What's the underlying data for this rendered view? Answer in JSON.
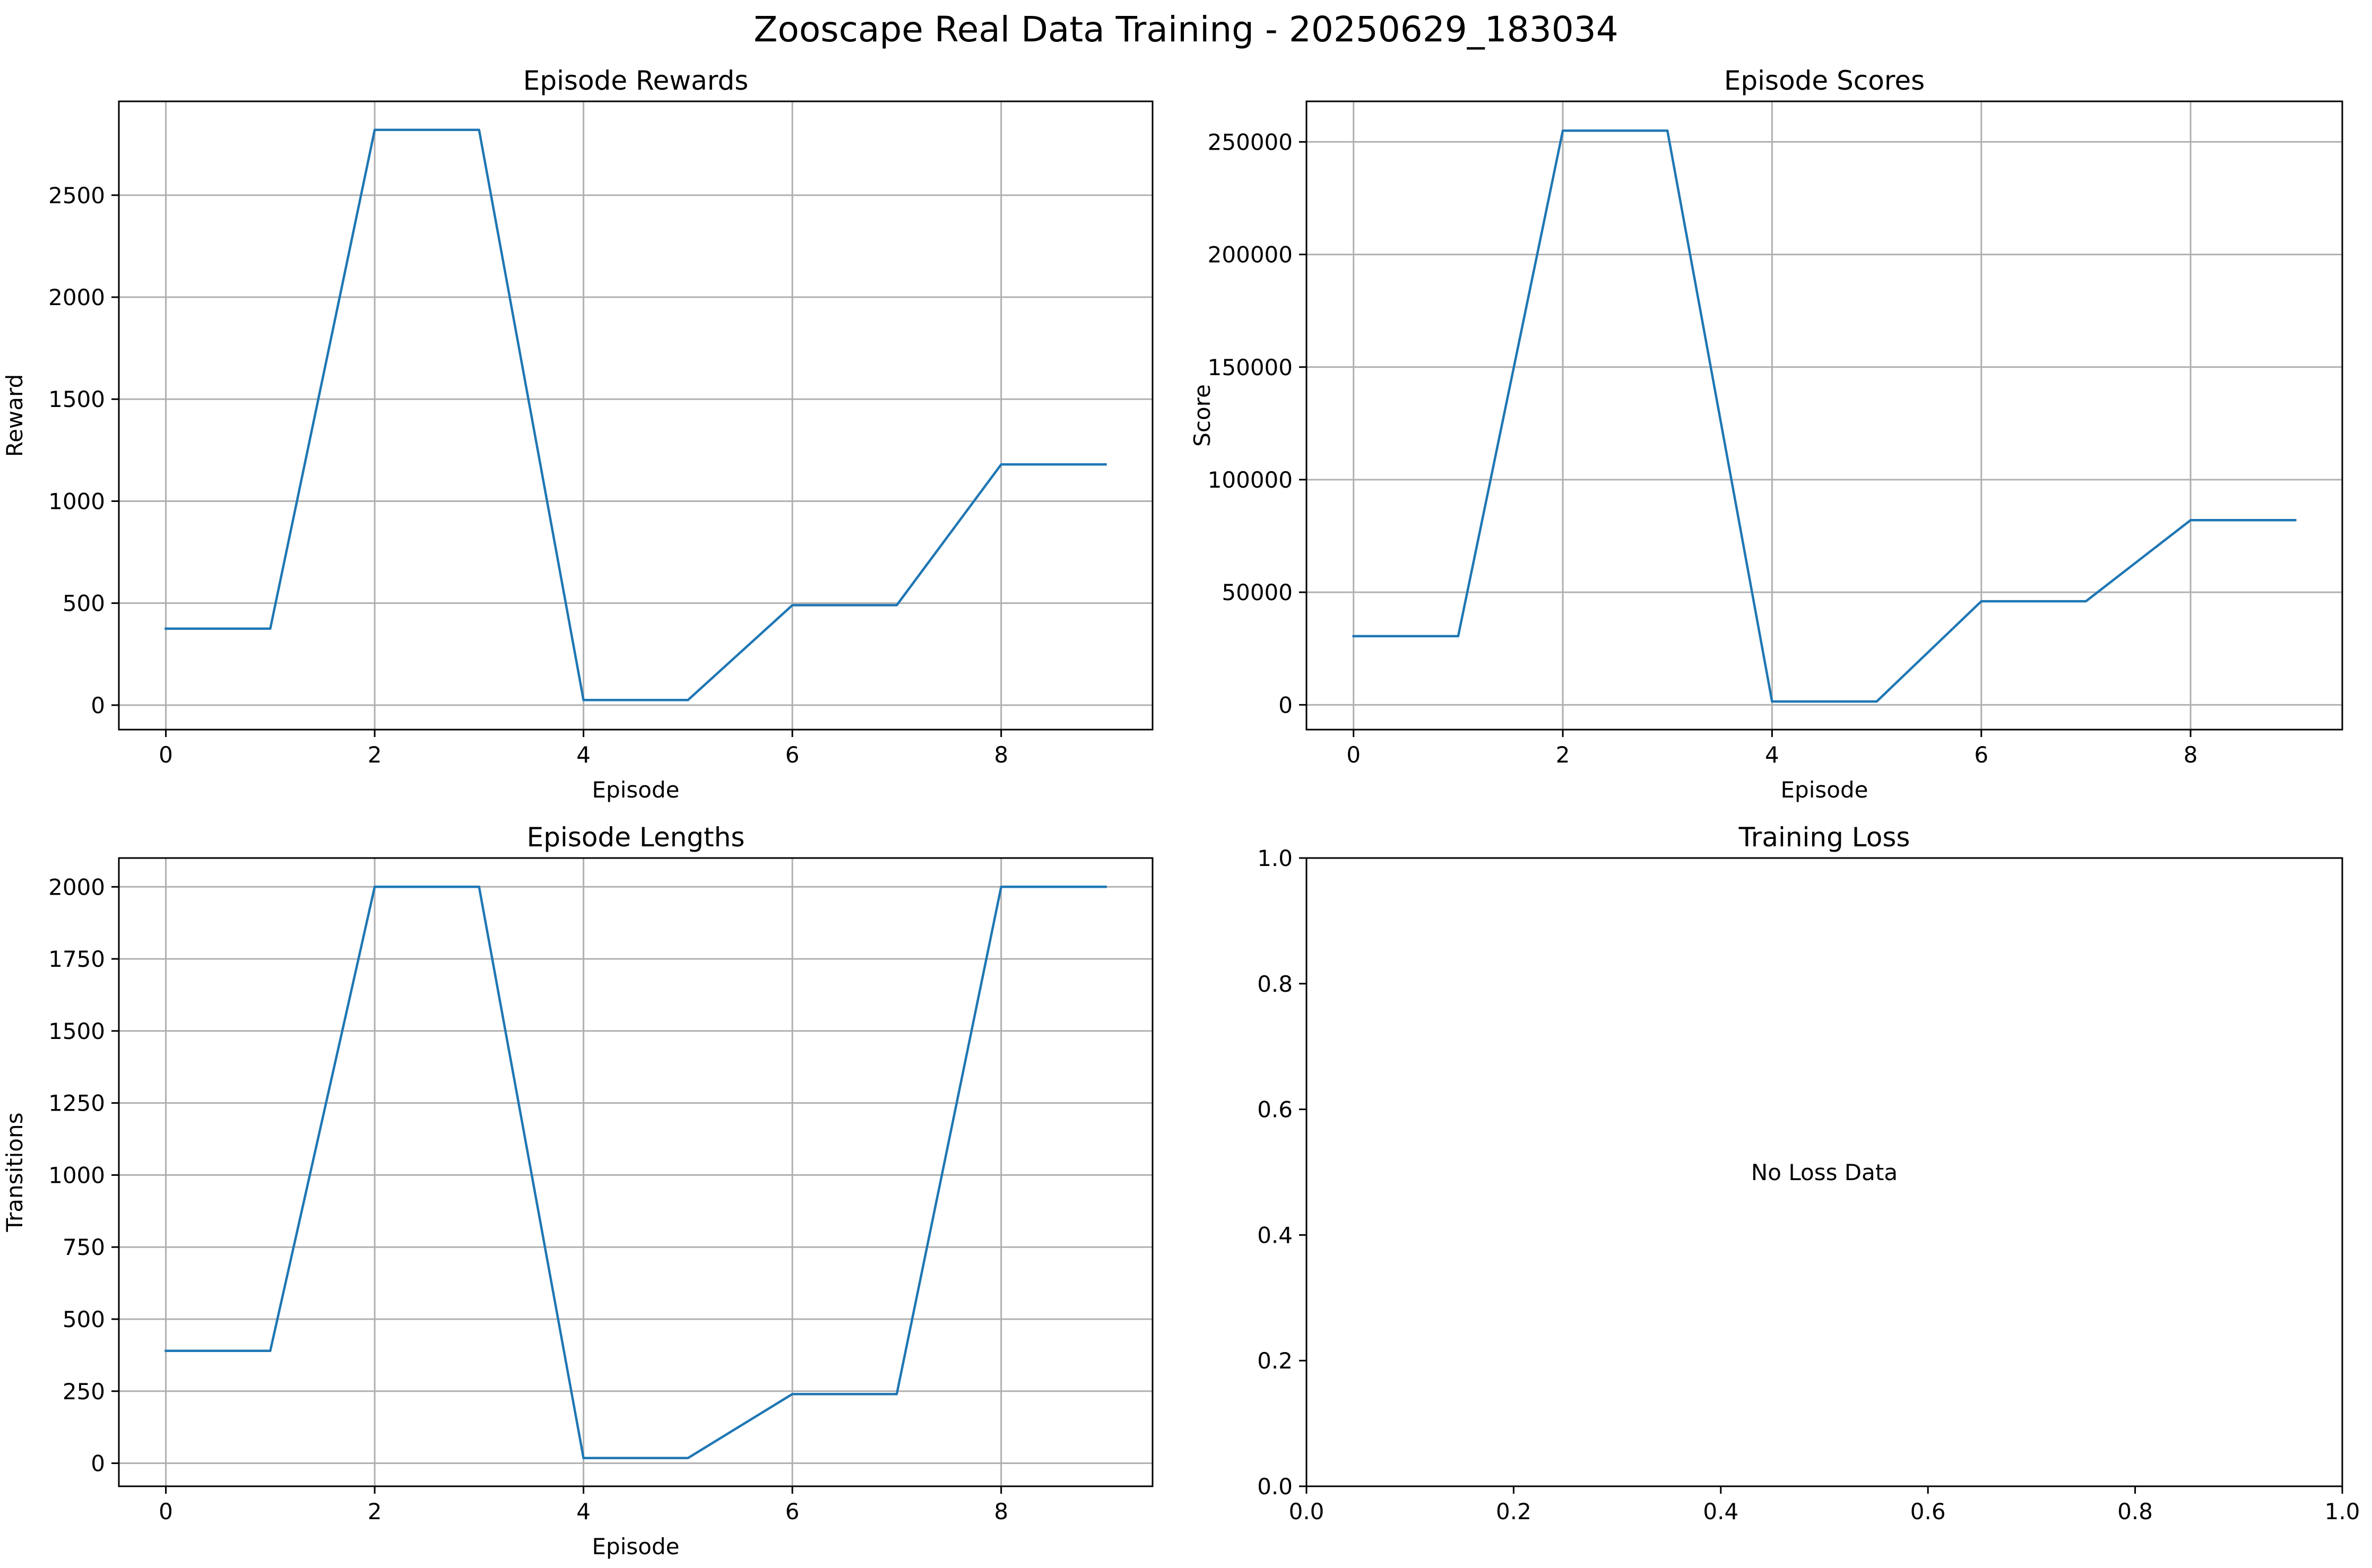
{
  "figure": {
    "suptitle": "Zooscape Real Data Training - 20250629_183034"
  },
  "colors": {
    "line": "#1f77b4",
    "grid": "#b0b0b0",
    "axes": "#000000",
    "background": "#ffffff"
  },
  "chart_data": [
    {
      "type": "line",
      "title": "Episode Rewards",
      "xlabel": "Episode",
      "ylabel": "Reward",
      "x": [
        0,
        1,
        2,
        3,
        4,
        5,
        6,
        7,
        8,
        9
      ],
      "series": [
        {
          "values": [
            375,
            375,
            2820,
            2820,
            25,
            25,
            490,
            490,
            1180,
            1180
          ]
        }
      ],
      "xlim": [
        -0.45,
        9.45
      ],
      "ylim": [
        -120,
        2960
      ],
      "xticks": [
        0,
        2,
        4,
        6,
        8
      ],
      "yticks": [
        0,
        500,
        1000,
        1500,
        2000,
        2500
      ],
      "xtick_labels": [
        "0",
        "2",
        "4",
        "6",
        "8"
      ],
      "ytick_labels": [
        "0",
        "500",
        "1000",
        "1500",
        "2000",
        "2500"
      ],
      "grid": true
    },
    {
      "type": "line",
      "title": "Episode Scores",
      "xlabel": "Episode",
      "ylabel": "Score",
      "x": [
        0,
        1,
        2,
        3,
        4,
        5,
        6,
        7,
        8,
        9
      ],
      "series": [
        {
          "values": [
            30500,
            30500,
            255000,
            255000,
            1500,
            1500,
            46000,
            46000,
            82000,
            82000
          ]
        }
      ],
      "xlim": [
        -0.45,
        9.45
      ],
      "ylim": [
        -11000,
        268000
      ],
      "xticks": [
        0,
        2,
        4,
        6,
        8
      ],
      "yticks": [
        0,
        50000,
        100000,
        150000,
        200000,
        250000
      ],
      "xtick_labels": [
        "0",
        "2",
        "4",
        "6",
        "8"
      ],
      "ytick_labels": [
        "0",
        "50000",
        "100000",
        "150000",
        "200000",
        "250000"
      ],
      "grid": true
    },
    {
      "type": "line",
      "title": "Episode Lengths",
      "xlabel": "Episode",
      "ylabel": "Transitions",
      "x": [
        0,
        1,
        2,
        3,
        4,
        5,
        6,
        7,
        8,
        9
      ],
      "series": [
        {
          "values": [
            390,
            390,
            2000,
            2000,
            18,
            18,
            240,
            240,
            2000,
            2000
          ]
        }
      ],
      "xlim": [
        -0.45,
        9.45
      ],
      "ylim": [
        -80,
        2100
      ],
      "xticks": [
        0,
        2,
        4,
        6,
        8
      ],
      "yticks": [
        0,
        250,
        500,
        750,
        1000,
        1250,
        1500,
        1750,
        2000
      ],
      "xtick_labels": [
        "0",
        "2",
        "4",
        "6",
        "8"
      ],
      "ytick_labels": [
        "0",
        "250",
        "500",
        "750",
        "1000",
        "1250",
        "1500",
        "1750",
        "2000"
      ],
      "grid": true
    },
    {
      "type": "line",
      "title": "Training Loss",
      "xlabel": "",
      "ylabel": "",
      "x": [],
      "series": [],
      "xlim": [
        0,
        1
      ],
      "ylim": [
        0,
        1
      ],
      "xticks": [
        0,
        0.2,
        0.4,
        0.6,
        0.8,
        1.0
      ],
      "yticks": [
        0,
        0.2,
        0.4,
        0.6,
        0.8,
        1.0
      ],
      "xtick_labels": [
        "0.0",
        "0.2",
        "0.4",
        "0.6",
        "0.8",
        "1.0"
      ],
      "ytick_labels": [
        "0.0",
        "0.2",
        "0.4",
        "0.6",
        "0.8",
        "1.0"
      ],
      "grid": false,
      "annotation": "No Loss Data"
    }
  ]
}
